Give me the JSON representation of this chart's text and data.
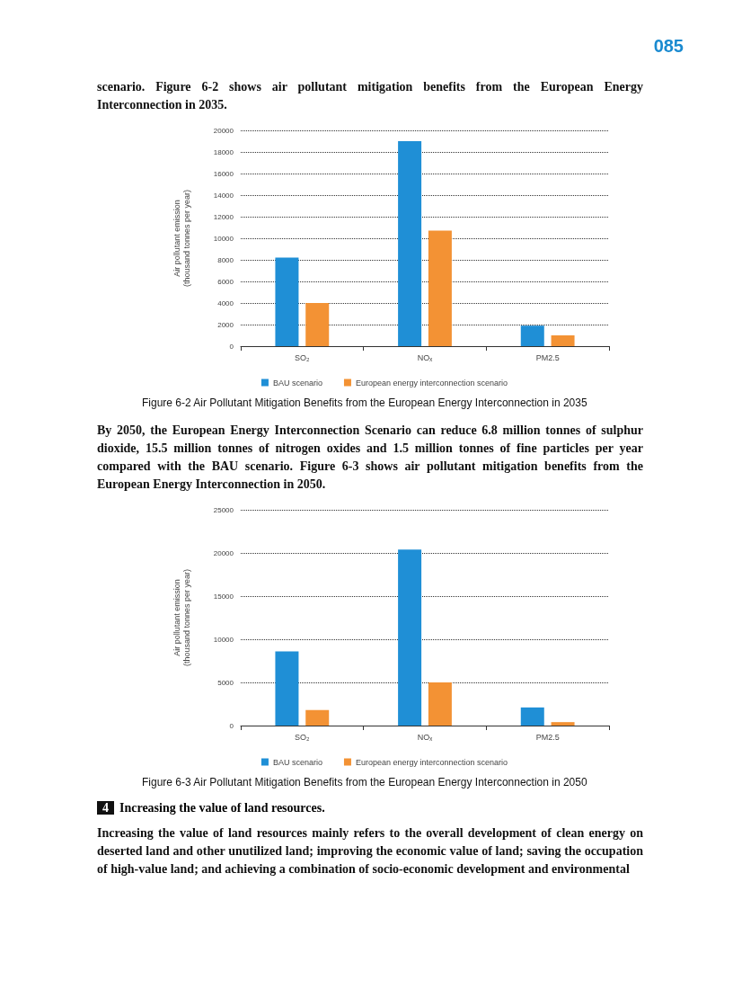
{
  "chart_data": [
    {
      "type": "bar",
      "title": "Figure 6-2  Air Pollutant Mitigation Benefits from the European Energy Interconnection in 2035",
      "ylabel": "Air pollutant emission\n(thousand tonnes per year)",
      "annotations": [
        "085",
        "scenario. Figure 6-2 shows air pollutant mitigation benefits from the European Energy Interconnection in 2035."
      ],
      "categories": [
        "SO₂",
        "NOₓ",
        "PM2.5"
      ],
      "series": [
        {
          "name": "BAU scenario",
          "color": "#1f8fd6",
          "values": [
            8200,
            19000,
            1900
          ]
        },
        {
          "name": "European energy interconnection scenario",
          "color": "#f39234",
          "values": [
            4000,
            10700,
            1000
          ]
        }
      ],
      "ylim": [
        0,
        20000
      ],
      "yticks": [
        0,
        2000,
        4000,
        6000,
        8000,
        10000,
        12000,
        14000,
        16000,
        18000,
        20000
      ],
      "grid": "y",
      "legend": "bottom"
    },
    {
      "type": "bar",
      "title": "Figure 6-3  Air Pollutant Mitigation Benefits from the European Energy Interconnection in 2050",
      "ylabel": "Air pollutant emission\n(thousand tonnes per year)",
      "annotations": [
        "By 2050, the European Energy Interconnection Scenario can reduce 6.8 million tonnes of sulphur dioxide, 15.5 million tonnes of nitrogen oxides and 1.5 million tonnes of fine particles per year compared with the BAU scenario. Figure 6-3 shows air pollutant mitigation benefits from the European Energy Interconnection in 2050.",
        "4 Increasing the value of land resources.",
        "Increasing the value of land resources mainly refers to the overall development of clean energy on deserted land and other unutilized land; improving the economic value of land; saving the occupation of high-value land; and achieving a combination of socio-economic development and environmental"
      ],
      "categories": [
        "SO₂",
        "NOₓ",
        "PM2.5"
      ],
      "series": [
        {
          "name": "BAU scenario",
          "color": "#1f8fd6",
          "values": [
            8600,
            20400,
            2100
          ]
        },
        {
          "name": "European energy interconnection scenario",
          "color": "#f39234",
          "values": [
            1800,
            5000,
            400
          ]
        }
      ],
      "ylim": [
        0,
        25000
      ],
      "yticks": [
        0,
        5000,
        10000,
        15000,
        20000,
        25000
      ],
      "grid": "y",
      "legend": "bottom"
    }
  ]
}
